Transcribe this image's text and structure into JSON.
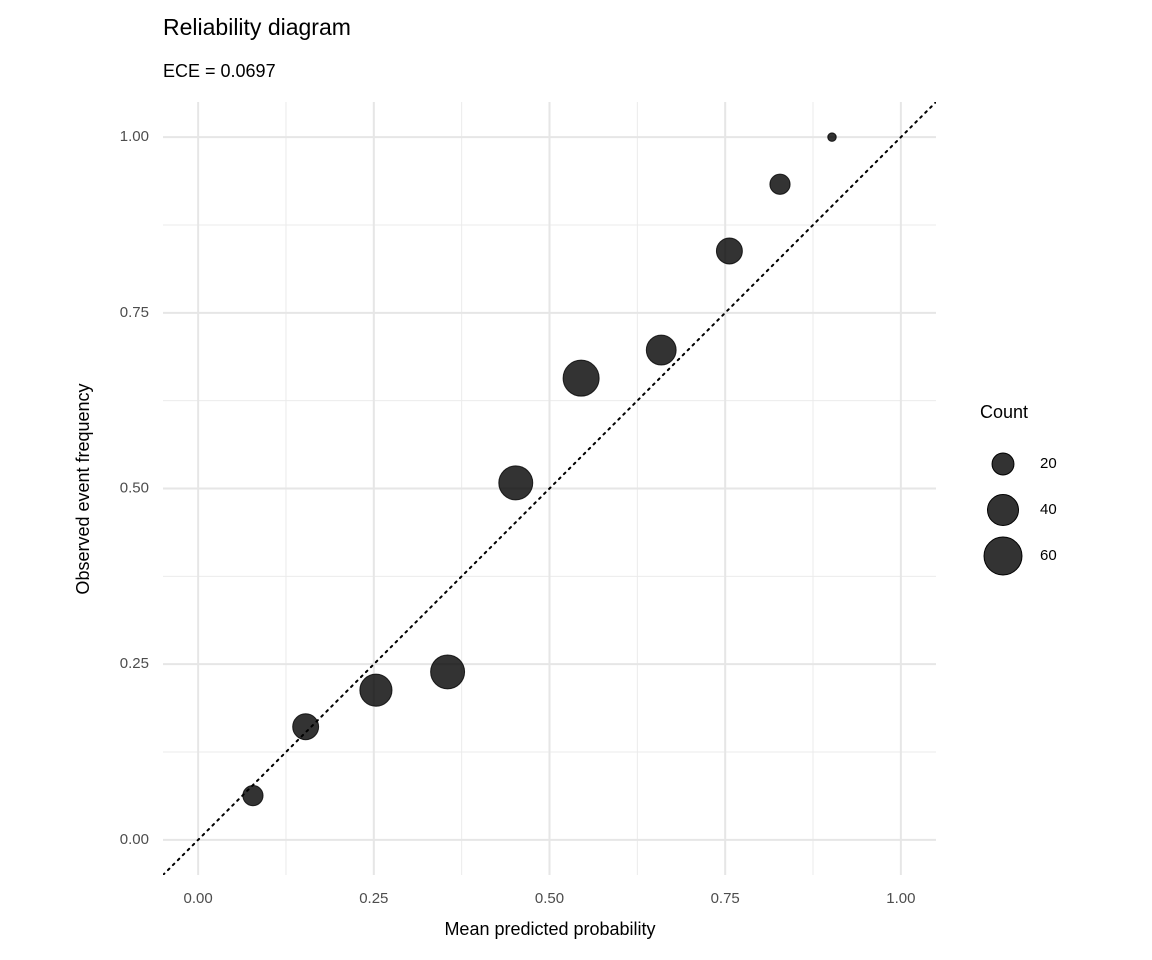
{
  "chart_data": {
    "type": "scatter",
    "title": "Reliability diagram",
    "subtitle": "ECE = 0.0697",
    "x_label": "Mean predicted probability",
    "y_label": "Observed event frequency",
    "x": [
      0.078,
      0.153,
      0.253,
      0.355,
      0.452,
      0.545,
      0.659,
      0.756,
      0.828,
      0.902
    ],
    "y": [
      0.063,
      0.161,
      0.213,
      0.239,
      0.508,
      0.657,
      0.697,
      0.838,
      0.933,
      1.0
    ],
    "sizes": [
      17,
      28,
      43,
      48,
      48,
      54,
      37,
      28,
      17,
      3
    ],
    "color": "#000000",
    "xlim": [
      -0.05,
      1.05
    ],
    "ylim": [
      -0.05,
      1.05
    ],
    "xticks": [
      {
        "value": 0,
        "label": "0.00"
      },
      {
        "value": 0.25,
        "label": "0.25"
      },
      {
        "value": 0.5,
        "label": "0.50"
      },
      {
        "value": 0.75,
        "label": "0.75"
      },
      {
        "value": 1,
        "label": "1.00"
      }
    ],
    "yticks": [
      {
        "value": 0,
        "label": "0.00"
      },
      {
        "value": 0.25,
        "label": "0.25"
      },
      {
        "value": 0.5,
        "label": "0.50"
      },
      {
        "value": 0.75,
        "label": "0.75"
      },
      {
        "value": 1,
        "label": "1.00"
      }
    ],
    "minor_gridlines": [
      0.125,
      0.375,
      0.625,
      0.875
    ],
    "grid": true,
    "diagonal": true,
    "size_legend": {
      "title": "Count",
      "values": [
        20,
        40,
        60
      ]
    },
    "legend_position": "right"
  }
}
